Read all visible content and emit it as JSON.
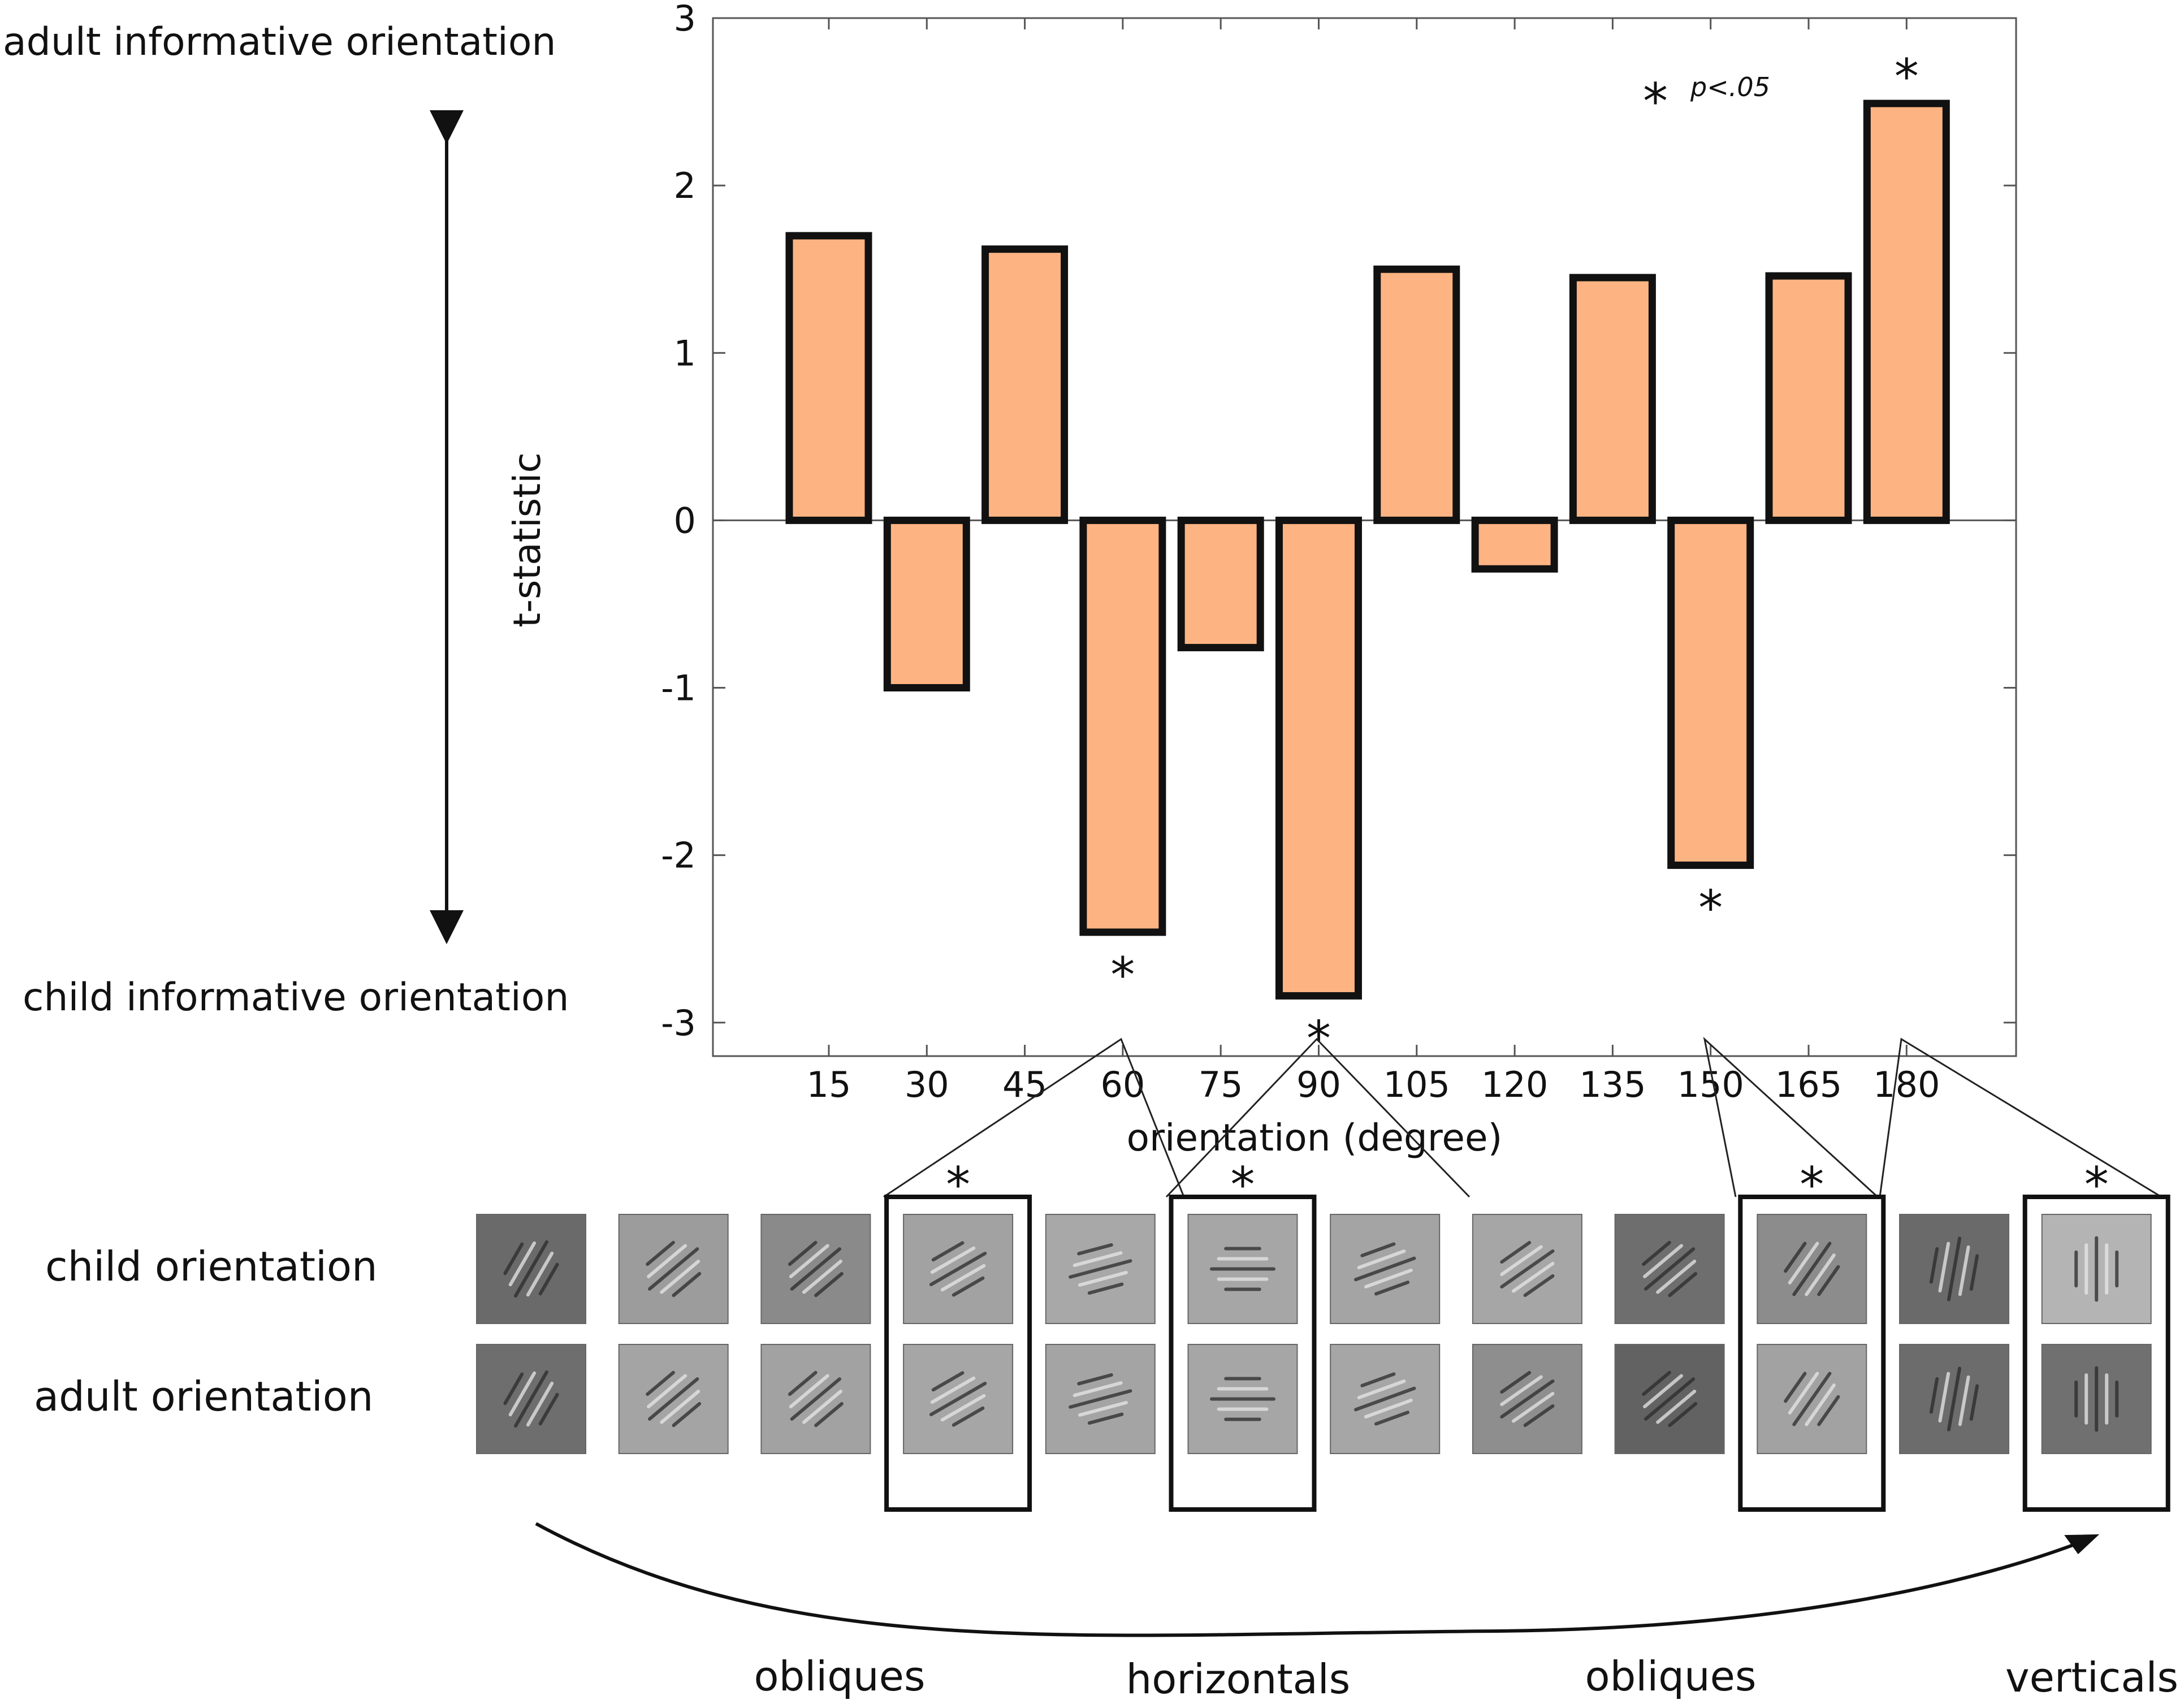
{
  "chart_data": {
    "type": "bar",
    "title": "",
    "xlabel": "orientation (degree)",
    "ylabel": "t-statistic",
    "categories": [
      "15",
      "30",
      "45",
      "60",
      "75",
      "90",
      "105",
      "120",
      "135",
      "150",
      "165",
      "180"
    ],
    "values": [
      1.7,
      -1.0,
      1.62,
      -2.46,
      -0.76,
      -2.84,
      1.5,
      -0.29,
      1.45,
      -2.06,
      1.46,
      2.49
    ],
    "significant": [
      false,
      false,
      false,
      true,
      false,
      true,
      false,
      false,
      false,
      true,
      false,
      true
    ],
    "ylim": [
      -3.2,
      3
    ],
    "yticks": [
      -3,
      -2,
      -1,
      0,
      1,
      2,
      3
    ],
    "bar_color": "#FDB482",
    "bar_edge_color": "#111111",
    "grid": false,
    "significance_marker": "*",
    "legend": {
      "marker": "*",
      "label": "p<.05",
      "placement": "top-right"
    }
  },
  "annotations": {
    "top_label": "adult informative orientation",
    "bottom_label": "child informative orientation"
  },
  "filters": {
    "row_labels": [
      "child orientation",
      "adult  orientation"
    ],
    "highlight_marker": "*",
    "highlighted_orientations": [
      "60",
      "90",
      "150",
      "180"
    ]
  },
  "categories_bottom": [
    {
      "label": "obliques"
    },
    {
      "label": "horizontals"
    },
    {
      "label": "obliques"
    },
    {
      "label": "verticals"
    }
  ]
}
